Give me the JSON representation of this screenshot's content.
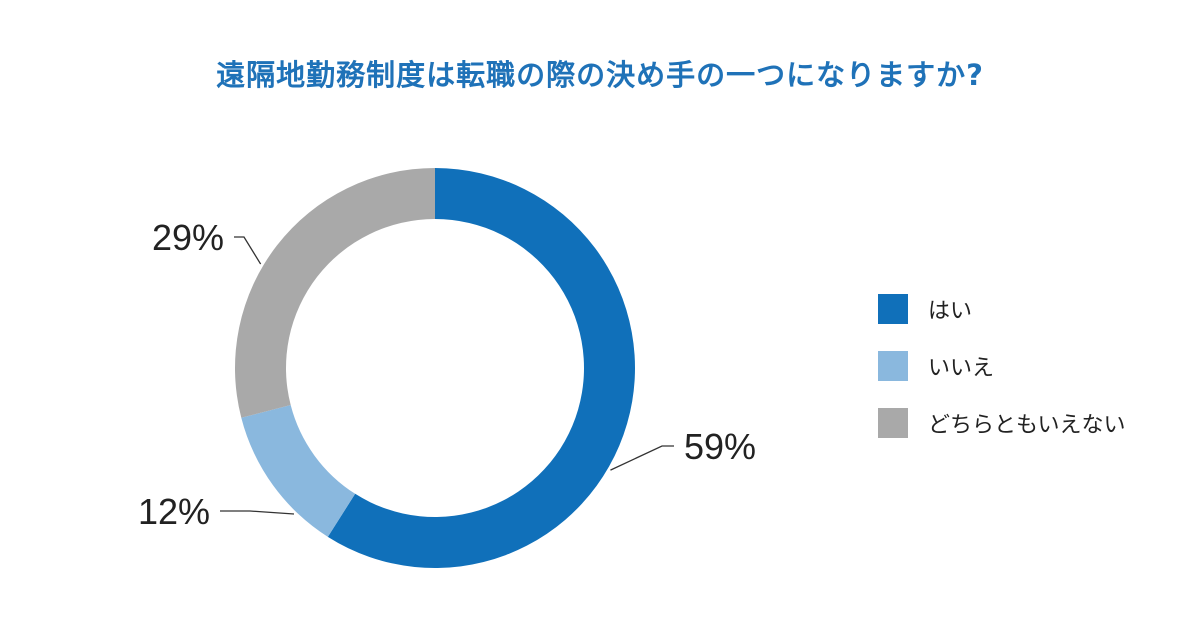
{
  "chart_data": {
    "type": "pie",
    "variant": "donut",
    "title": "遠隔地勤務制度は転職の際の決め手の一つになりますか?",
    "categories": [
      "はい",
      "いいえ",
      "どちらともいえない"
    ],
    "values": [
      59,
      12,
      29
    ],
    "value_labels": [
      "59%",
      "12%",
      "29%"
    ],
    "colors": [
      "#1070ba",
      "#8ab8de",
      "#a9a9a9"
    ],
    "legend_position": "right"
  }
}
